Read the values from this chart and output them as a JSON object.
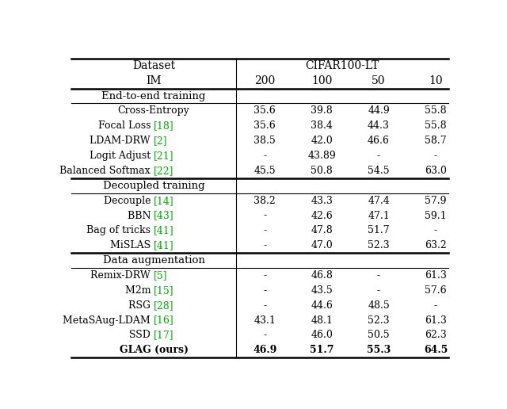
{
  "header_row1": [
    "Dataset",
    "CIFAR100-LT"
  ],
  "header_row2": [
    "IM",
    "200",
    "100",
    "50",
    "10"
  ],
  "sections": [
    {
      "section_name": "End-to-end training",
      "rows": [
        {
          "name": "Cross-Entropy",
          "ref": "",
          "values": [
            "35.6",
            "39.8",
            "44.9",
            "55.8"
          ],
          "bold": false
        },
        {
          "name": "Focal Loss",
          "ref": "[18]",
          "values": [
            "35.6",
            "38.4",
            "44.3",
            "55.8"
          ],
          "bold": false
        },
        {
          "name": "LDAM-DRW",
          "ref": "[2]",
          "values": [
            "38.5",
            "42.0",
            "46.6",
            "58.7"
          ],
          "bold": false
        },
        {
          "name": "Logit Adjust",
          "ref": "[21]",
          "values": [
            "-",
            "43.89",
            "-",
            "-"
          ],
          "bold": false
        },
        {
          "name": "Balanced Softmax",
          "ref": "[22]",
          "values": [
            "45.5",
            "50.8",
            "54.5",
            "63.0"
          ],
          "bold": false
        }
      ]
    },
    {
      "section_name": "Decoupled training",
      "rows": [
        {
          "name": "Decouple",
          "ref": "[14]",
          "values": [
            "38.2",
            "43.3",
            "47.4",
            "57.9"
          ],
          "bold": false
        },
        {
          "name": "BBN",
          "ref": "[43]",
          "values": [
            "-",
            "42.6",
            "47.1",
            "59.1"
          ],
          "bold": false
        },
        {
          "name": "Bag of tricks",
          "ref": "[41]",
          "values": [
            "-",
            "47.8",
            "51.7",
            "-"
          ],
          "bold": false
        },
        {
          "name": "MiSLAS",
          "ref": "[41]",
          "values": [
            "-",
            "47.0",
            "52.3",
            "63.2"
          ],
          "bold": false
        }
      ]
    },
    {
      "section_name": "Data augmentation",
      "rows": [
        {
          "name": "Remix-DRW",
          "ref": "[5]",
          "values": [
            "-",
            "46.8",
            "-",
            "61.3"
          ],
          "bold": false
        },
        {
          "name": "M2m",
          "ref": "[15]",
          "values": [
            "-",
            "43.5",
            "-",
            "57.6"
          ],
          "bold": false
        },
        {
          "name": "RSG",
          "ref": "[28]",
          "values": [
            "-",
            "44.6",
            "48.5",
            "-"
          ],
          "bold": false
        },
        {
          "name": "MetaSAug-LDAM",
          "ref": "[16]",
          "values": [
            "43.1",
            "48.1",
            "52.3",
            "61.3"
          ],
          "bold": false
        },
        {
          "name": "SSD",
          "ref": "[17]",
          "values": [
            "-",
            "46.0",
            "50.5",
            "62.3"
          ],
          "bold": false
        },
        {
          "name": "GLAG (ours)",
          "ref": "",
          "values": [
            "46.9",
            "51.7",
            "55.3",
            "64.5"
          ],
          "bold": true
        }
      ]
    }
  ],
  "ref_color": "#00AA00",
  "bg_color": "#FFFFFF",
  "figsize": [
    6.4,
    5.16
  ],
  "dpi": 100
}
